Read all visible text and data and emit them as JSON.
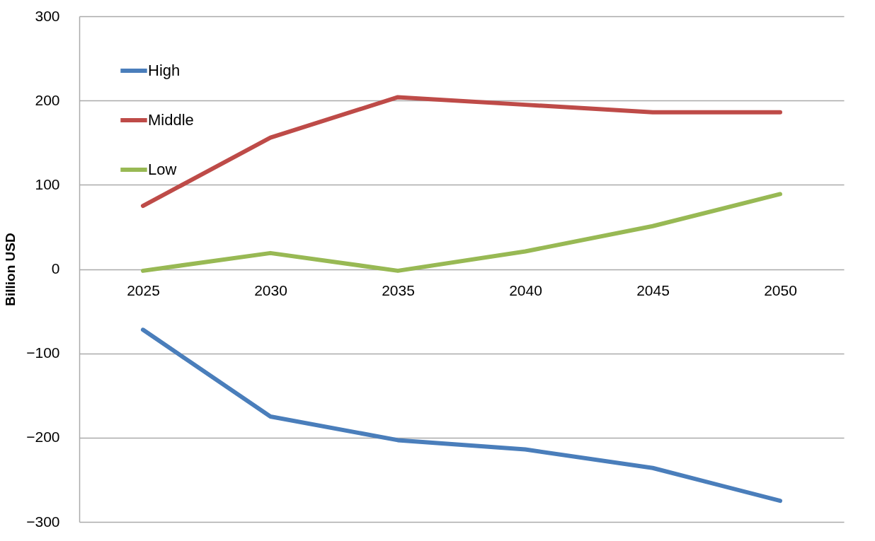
{
  "chart_data": {
    "type": "line",
    "ylabel": "Billion USD",
    "categories": [
      "2025",
      "2030",
      "2035",
      "2040",
      "2045",
      "2050"
    ],
    "series": [
      {
        "name": "High",
        "color": "#4a7ebb",
        "values": [
          -72,
          -175,
          -203,
          -214,
          -236,
          -275
        ]
      },
      {
        "name": "Middle",
        "color": "#be4b48",
        "values": [
          75,
          156,
          204,
          195,
          186,
          186
        ]
      },
      {
        "name": "Low",
        "color": "#98b954",
        "values": [
          -2,
          19,
          -2,
          21,
          51,
          89
        ]
      }
    ],
    "ylim": [
      -300,
      300
    ],
    "yticks": [
      -300,
      -200,
      -100,
      0,
      100,
      200,
      300
    ],
    "grid": "y",
    "legend": "top left",
    "marker": "none",
    "line_style": "solid"
  }
}
